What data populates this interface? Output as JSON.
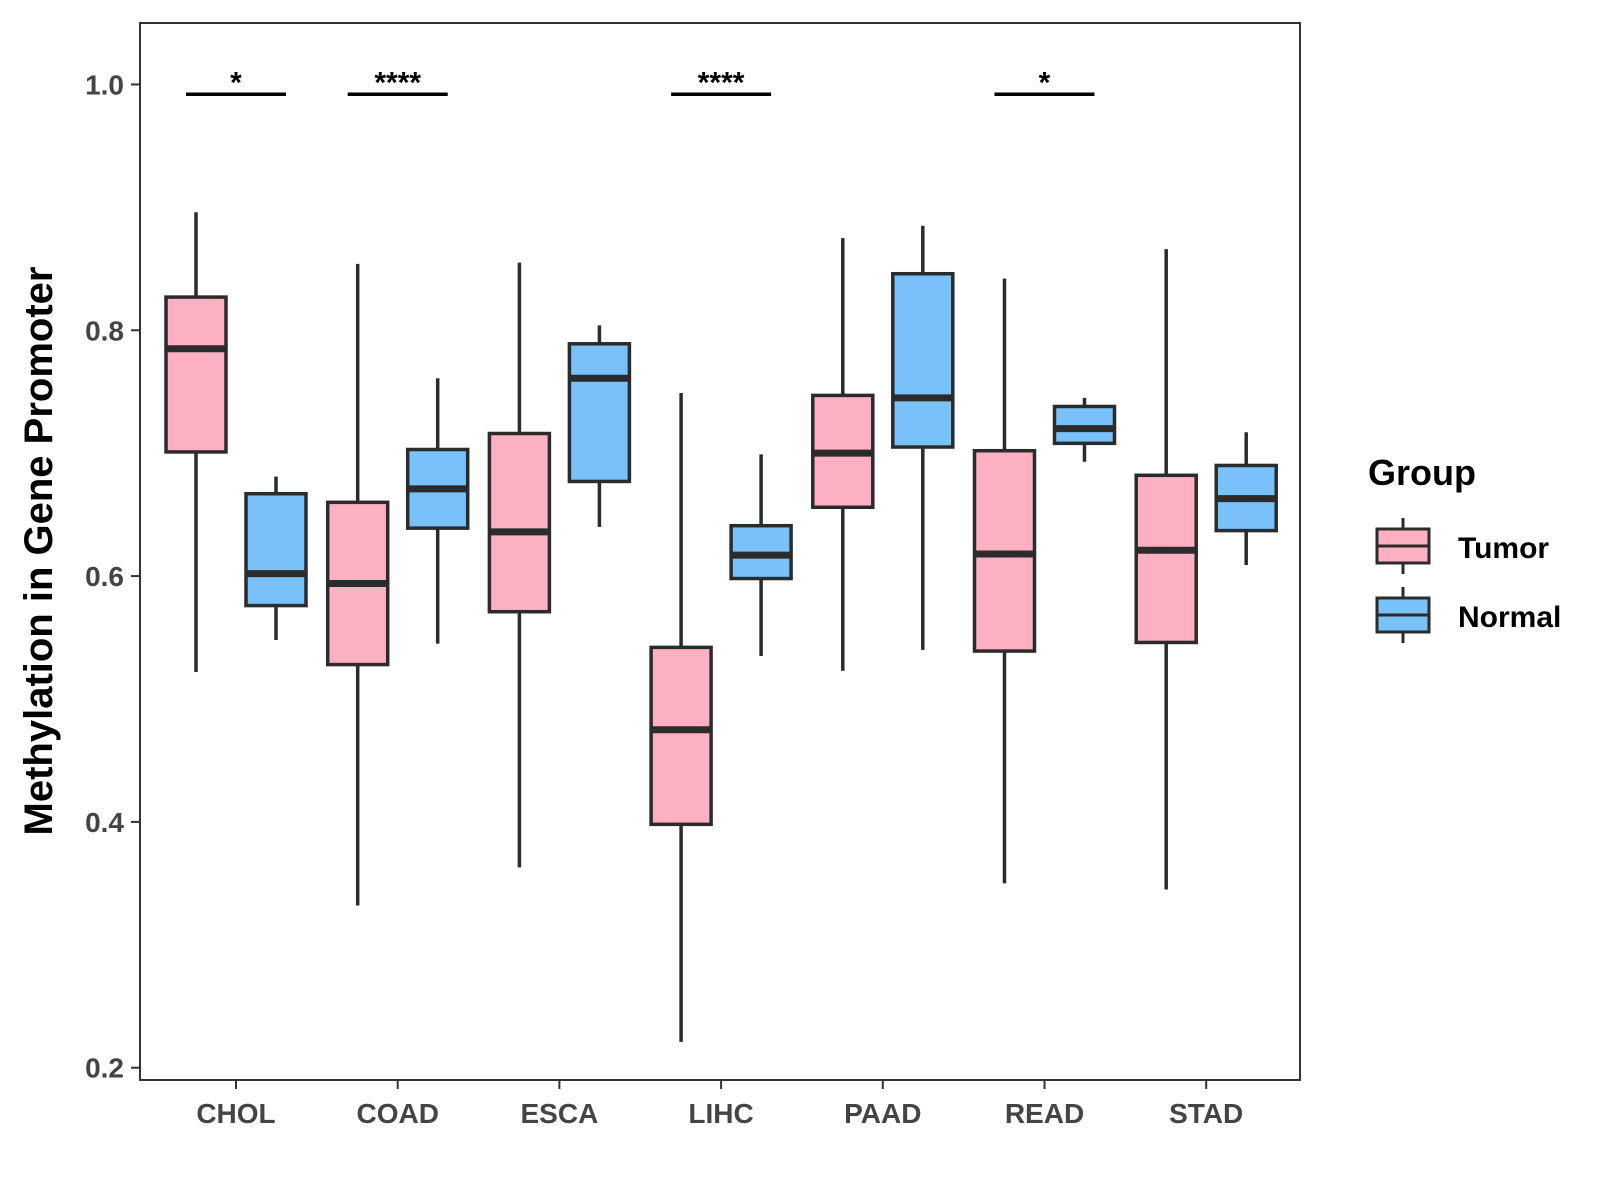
{
  "chart_data": {
    "type": "box",
    "title": "",
    "xlabel": "",
    "ylabel": "Methylation in Gene Promoter",
    "ylim": [
      0.19,
      1.05
    ],
    "yticks": [
      0.2,
      0.4,
      0.6,
      0.8,
      1.0
    ],
    "ytick_labels": [
      "0.2",
      "0.4",
      "0.6",
      "0.8",
      "1.0"
    ],
    "categories": [
      "CHOL",
      "COAD",
      "ESCA",
      "LIHC",
      "PAAD",
      "READ",
      "STAD"
    ],
    "legend": {
      "title": "Group",
      "position": "right",
      "entries": [
        "Tumor",
        "Normal"
      ]
    },
    "series": [
      {
        "name": "Tumor",
        "color": "#FDB0C2",
        "boxes": [
          {
            "min": 0.522,
            "q1": 0.701,
            "median": 0.785,
            "q3": 0.827,
            "max": 0.896
          },
          {
            "min": 0.332,
            "q1": 0.528,
            "median": 0.594,
            "q3": 0.66,
            "max": 0.854
          },
          {
            "min": 0.363,
            "q1": 0.571,
            "median": 0.636,
            "q3": 0.716,
            "max": 0.855
          },
          {
            "min": 0.221,
            "q1": 0.398,
            "median": 0.475,
            "q3": 0.542,
            "max": 0.749
          },
          {
            "min": 0.523,
            "q1": 0.656,
            "median": 0.7,
            "q3": 0.747,
            "max": 0.875
          },
          {
            "min": 0.35,
            "q1": 0.539,
            "median": 0.618,
            "q3": 0.702,
            "max": 0.842
          },
          {
            "min": 0.345,
            "q1": 0.546,
            "median": 0.621,
            "q3": 0.682,
            "max": 0.866
          }
        ]
      },
      {
        "name": "Normal",
        "color": "#79C1F9",
        "boxes": [
          {
            "min": 0.548,
            "q1": 0.576,
            "median": 0.602,
            "q3": 0.667,
            "max": 0.681
          },
          {
            "min": 0.545,
            "q1": 0.639,
            "median": 0.671,
            "q3": 0.703,
            "max": 0.761
          },
          {
            "min": 0.64,
            "q1": 0.677,
            "median": 0.761,
            "q3": 0.789,
            "max": 0.804
          },
          {
            "min": 0.535,
            "q1": 0.598,
            "median": 0.617,
            "q3": 0.641,
            "max": 0.699
          },
          {
            "min": 0.54,
            "q1": 0.705,
            "median": 0.745,
            "q3": 0.846,
            "max": 0.885
          },
          {
            "min": 0.693,
            "q1": 0.708,
            "median": 0.72,
            "q3": 0.738,
            "max": 0.745
          },
          {
            "min": 0.609,
            "q1": 0.637,
            "median": 0.663,
            "q3": 0.69,
            "max": 0.717
          }
        ]
      }
    ],
    "significance": [
      {
        "category": "CHOL",
        "label": "*",
        "y": 0.992
      },
      {
        "category": "COAD",
        "label": "****",
        "y": 0.992
      },
      {
        "category": "LIHC",
        "label": "****",
        "y": 0.992
      },
      {
        "category": "READ",
        "label": "*",
        "y": 0.992
      }
    ]
  }
}
